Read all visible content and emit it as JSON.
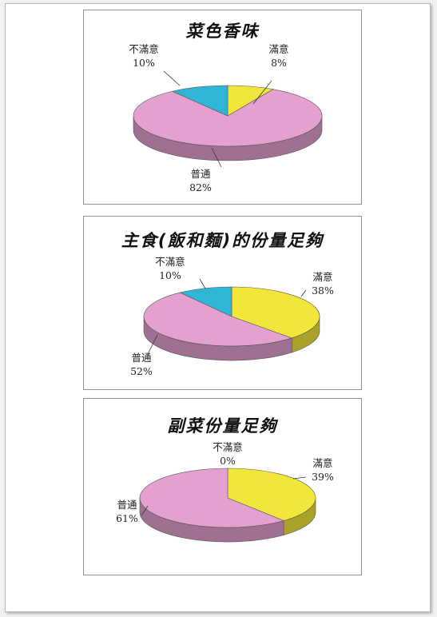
{
  "colors": {
    "satisfied": "#f2e63a",
    "normal": "#e4a0cf",
    "dissatisfied": "#2fb6d6"
  },
  "chart_data": [
    {
      "type": "pie",
      "title": "菜色香味",
      "slices": [
        {
          "label": "滿意",
          "value": 8,
          "pct_label": "8%"
        },
        {
          "label": "普通",
          "value": 82,
          "pct_label": "82%"
        },
        {
          "label": "不滿意",
          "value": 10,
          "pct_label": "10%"
        }
      ]
    },
    {
      "type": "pie",
      "title": "主食(飯和麵)的份量足夠",
      "slices": [
        {
          "label": "滿意",
          "value": 38,
          "pct_label": "38%"
        },
        {
          "label": "普通",
          "value": 52,
          "pct_label": "52%"
        },
        {
          "label": "不滿意",
          "value": 10,
          "pct_label": "10%"
        }
      ]
    },
    {
      "type": "pie",
      "title": "副菜份量足夠",
      "slices": [
        {
          "label": "滿意",
          "value": 39,
          "pct_label": "39%"
        },
        {
          "label": "普通",
          "value": 61,
          "pct_label": "61%"
        },
        {
          "label": "不滿意",
          "value": 0,
          "pct_label": "0%"
        }
      ]
    }
  ]
}
